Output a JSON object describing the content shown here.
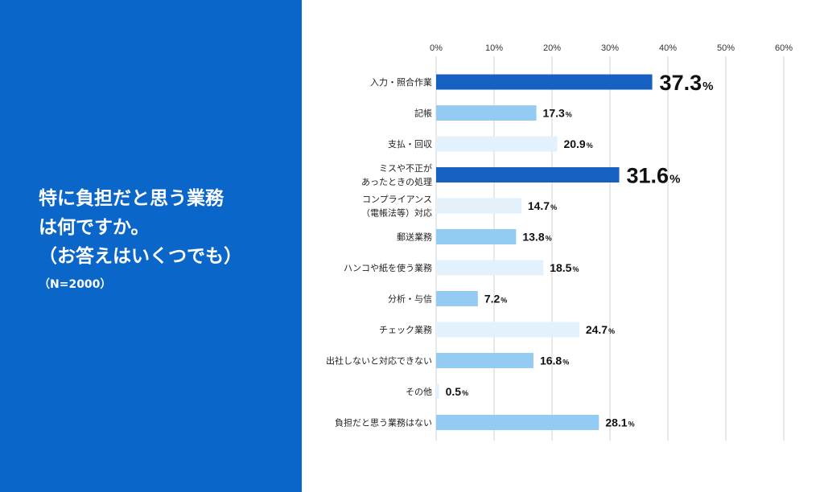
{
  "question": {
    "lines": [
      "特に負担だと思う業務",
      "は何ですか。",
      "（お答えはいくつでも）"
    ],
    "sample": "（N=2000）"
  },
  "colors": {
    "panel": "#0a66c8",
    "highlight": "#1560c0",
    "medium": "#94cbf3",
    "light": "#e2f1fb",
    "grid": "#d2d2d2"
  },
  "chart_data": {
    "type": "bar",
    "orientation": "horizontal",
    "xlim": [
      0,
      60
    ],
    "xticks": [
      "0%",
      "10%",
      "20%",
      "30%",
      "40%",
      "50%",
      "60%"
    ],
    "unit": "%",
    "grid": true,
    "categories": [
      [
        "入力・照合作業"
      ],
      [
        "記帳"
      ],
      [
        "支払・回収"
      ],
      [
        "ミスや不正が",
        "あったときの処理"
      ],
      [
        "コンプライアンス",
        "（電帳法等）対応"
      ],
      [
        "郵送業務"
      ],
      [
        "ハンコや紙を使う業務"
      ],
      [
        "分析・与信"
      ],
      [
        "チェック業務"
      ],
      [
        "出社しないと対応できない"
      ],
      [
        "その他"
      ],
      [
        "負担だと思う業務はない"
      ]
    ],
    "values": [
      37.3,
      17.3,
      20.9,
      31.6,
      14.7,
      13.8,
      18.5,
      7.2,
      24.7,
      16.8,
      0.5,
      28.1
    ],
    "value_labels": [
      "37.3",
      "17.3",
      "20.9",
      "31.6",
      "14.7",
      "13.8",
      "18.5",
      "7.2",
      "24.7",
      "16.8",
      "0.5",
      "28.1"
    ],
    "bar_colors": [
      "highlight",
      "medium",
      "light",
      "highlight",
      "light",
      "medium",
      "light",
      "medium",
      "light",
      "medium",
      "light",
      "medium"
    ]
  }
}
